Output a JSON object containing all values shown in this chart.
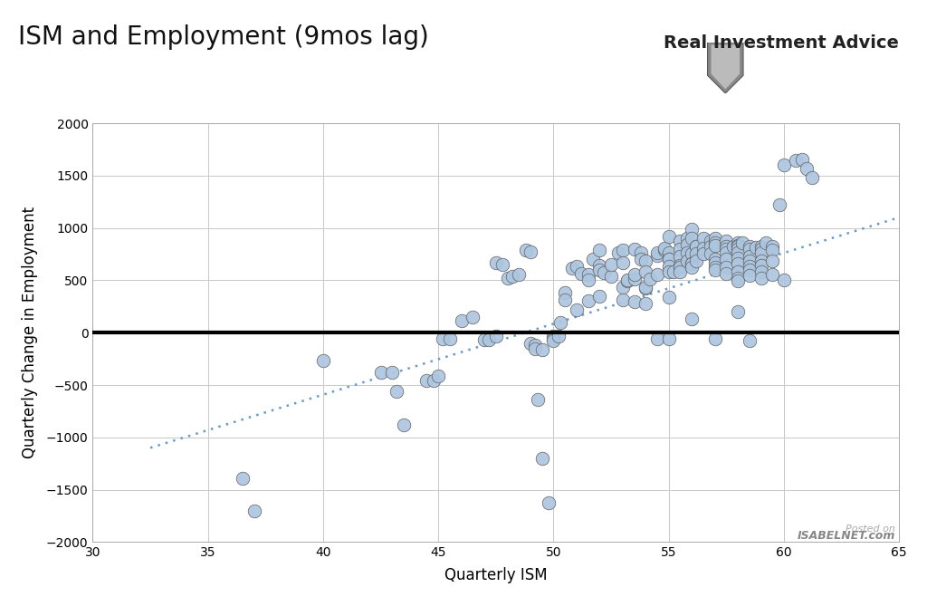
{
  "title": "ISM and Employment (9mos lag)",
  "xlabel": "Quarterly ISM",
  "ylabel": "Quarterly Change in Employment",
  "xlim": [
    30,
    65
  ],
  "ylim": [
    -2000,
    2000
  ],
  "xticks": [
    30,
    35,
    40,
    45,
    50,
    55,
    60,
    65
  ],
  "yticks": [
    -2000,
    -1500,
    -1000,
    -500,
    0,
    500,
    1000,
    1500,
    2000
  ],
  "background_color": "#ffffff",
  "scatter_color": "#adc6e0",
  "scatter_edgecolor": "#606060",
  "trendline_color": "#6699cc",
  "hline_color": "#000000",
  "scatter_points": [
    [
      36.5,
      -1390
    ],
    [
      37.0,
      -1700
    ],
    [
      40.0,
      -270
    ],
    [
      42.5,
      -380
    ],
    [
      43.0,
      -380
    ],
    [
      43.2,
      -560
    ],
    [
      43.5,
      -880
    ],
    [
      44.5,
      -460
    ],
    [
      44.8,
      -460
    ],
    [
      45.0,
      -410
    ],
    [
      45.2,
      -60
    ],
    [
      45.5,
      -60
    ],
    [
      46.0,
      110
    ],
    [
      46.5,
      150
    ],
    [
      47.0,
      -70
    ],
    [
      47.2,
      -70
    ],
    [
      47.5,
      -30
    ],
    [
      47.5,
      665
    ],
    [
      47.8,
      650
    ],
    [
      48.0,
      520
    ],
    [
      48.2,
      535
    ],
    [
      48.5,
      555
    ],
    [
      48.8,
      790
    ],
    [
      49.0,
      775
    ],
    [
      49.0,
      -100
    ],
    [
      49.2,
      -120
    ],
    [
      49.2,
      -155
    ],
    [
      49.3,
      -640
    ],
    [
      49.5,
      -160
    ],
    [
      49.5,
      -1200
    ],
    [
      49.8,
      -1625
    ],
    [
      50.0,
      -30
    ],
    [
      50.0,
      -55
    ],
    [
      50.0,
      -80
    ],
    [
      50.2,
      -35
    ],
    [
      50.3,
      100
    ],
    [
      50.5,
      385
    ],
    [
      50.8,
      615
    ],
    [
      51.0,
      630
    ],
    [
      51.2,
      565
    ],
    [
      51.5,
      555
    ],
    [
      51.5,
      505
    ],
    [
      51.7,
      700
    ],
    [
      52.0,
      785
    ],
    [
      52.0,
      645
    ],
    [
      52.0,
      595
    ],
    [
      52.2,
      575
    ],
    [
      52.5,
      535
    ],
    [
      52.5,
      650
    ],
    [
      52.8,
      765
    ],
    [
      53.0,
      785
    ],
    [
      53.0,
      665
    ],
    [
      53.0,
      435
    ],
    [
      53.2,
      495
    ],
    [
      53.2,
      505
    ],
    [
      53.5,
      515
    ],
    [
      53.5,
      555
    ],
    [
      53.5,
      795
    ],
    [
      53.8,
      765
    ],
    [
      53.8,
      705
    ],
    [
      54.0,
      685
    ],
    [
      54.0,
      585
    ],
    [
      54.0,
      425
    ],
    [
      54.0,
      435
    ],
    [
      54.2,
      515
    ],
    [
      54.5,
      555
    ],
    [
      54.5,
      735
    ],
    [
      54.5,
      765
    ],
    [
      54.5,
      -55
    ],
    [
      54.8,
      785
    ],
    [
      54.8,
      805
    ],
    [
      55.0,
      915
    ],
    [
      55.0,
      765
    ],
    [
      55.0,
      705
    ],
    [
      55.0,
      705
    ],
    [
      55.0,
      635
    ],
    [
      55.0,
      585
    ],
    [
      55.0,
      335
    ],
    [
      55.0,
      -55
    ],
    [
      55.2,
      585
    ],
    [
      55.5,
      875
    ],
    [
      55.5,
      795
    ],
    [
      55.5,
      725
    ],
    [
      55.5,
      645
    ],
    [
      55.5,
      625
    ],
    [
      55.5,
      585
    ],
    [
      55.8,
      905
    ],
    [
      55.8,
      845
    ],
    [
      55.8,
      765
    ],
    [
      55.8,
      685
    ],
    [
      56.0,
      985
    ],
    [
      56.0,
      905
    ],
    [
      56.0,
      755
    ],
    [
      56.0,
      655
    ],
    [
      56.0,
      655
    ],
    [
      56.0,
      625
    ],
    [
      56.0,
      135
    ],
    [
      56.2,
      825
    ],
    [
      56.2,
      825
    ],
    [
      56.2,
      755
    ],
    [
      56.2,
      685
    ],
    [
      56.5,
      905
    ],
    [
      56.5,
      805
    ],
    [
      56.5,
      755
    ],
    [
      56.8,
      875
    ],
    [
      56.8,
      825
    ],
    [
      56.8,
      755
    ],
    [
      57.0,
      905
    ],
    [
      57.0,
      855
    ],
    [
      57.0,
      835
    ],
    [
      57.0,
      705
    ],
    [
      57.0,
      665
    ],
    [
      57.0,
      625
    ],
    [
      57.0,
      595
    ],
    [
      57.0,
      -55
    ],
    [
      57.5,
      875
    ],
    [
      57.5,
      825
    ],
    [
      57.5,
      795
    ],
    [
      57.5,
      765
    ],
    [
      57.5,
      705
    ],
    [
      57.5,
      625
    ],
    [
      57.5,
      565
    ],
    [
      57.8,
      825
    ],
    [
      58.0,
      855
    ],
    [
      58.0,
      835
    ],
    [
      58.0,
      825
    ],
    [
      58.0,
      795
    ],
    [
      58.0,
      765
    ],
    [
      58.0,
      715
    ],
    [
      58.0,
      655
    ],
    [
      58.0,
      585
    ],
    [
      58.0,
      525
    ],
    [
      58.0,
      495
    ],
    [
      58.0,
      205
    ],
    [
      58.2,
      855
    ],
    [
      58.5,
      825
    ],
    [
      58.5,
      795
    ],
    [
      58.5,
      725
    ],
    [
      58.5,
      685
    ],
    [
      58.5,
      635
    ],
    [
      58.5,
      595
    ],
    [
      58.5,
      545
    ],
    [
      58.5,
      -75
    ],
    [
      58.8,
      815
    ],
    [
      59.0,
      825
    ],
    [
      59.0,
      795
    ],
    [
      59.0,
      765
    ],
    [
      59.0,
      685
    ],
    [
      59.0,
      645
    ],
    [
      59.0,
      585
    ],
    [
      59.0,
      525
    ],
    [
      59.2,
      855
    ],
    [
      59.5,
      825
    ],
    [
      59.5,
      785
    ],
    [
      59.5,
      685
    ],
    [
      59.5,
      555
    ],
    [
      59.8,
      1225
    ],
    [
      60.0,
      1600
    ],
    [
      60.0,
      505
    ],
    [
      60.5,
      1645
    ],
    [
      60.8,
      1655
    ],
    [
      61.0,
      1565
    ],
    [
      61.2,
      1485
    ],
    [
      50.5,
      315
    ],
    [
      51.0,
      215
    ],
    [
      51.5,
      305
    ],
    [
      52.0,
      345
    ],
    [
      53.0,
      315
    ],
    [
      53.5,
      295
    ],
    [
      54.0,
      275
    ]
  ],
  "trendline_x": [
    32.5,
    65
  ],
  "trendline_y": [
    -1100,
    1100
  ],
  "logo_text": "Real Investment Advice",
  "watermark_line1": "Posted on",
  "watermark_line2": "ISABELNET.com",
  "title_fontsize": 20,
  "label_fontsize": 12,
  "tick_fontsize": 10,
  "logo_fontsize": 14,
  "watermark_fontsize": 8
}
